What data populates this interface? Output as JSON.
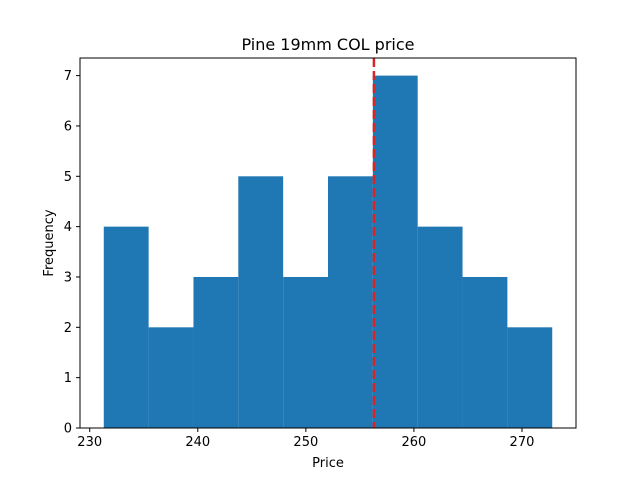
{
  "chart_data": {
    "type": "histogram",
    "title": "Pine 19mm COL price",
    "xlabel": "Price",
    "ylabel": "Frequency",
    "xlim": [
      229.1,
      275.0
    ],
    "ylim": [
      0,
      7.35
    ],
    "xticks": [
      230,
      240,
      250,
      260,
      270
    ],
    "yticks": [
      0,
      1,
      2,
      3,
      4,
      5,
      6,
      7
    ],
    "bins": [
      {
        "start": 231.3,
        "end": 235.45,
        "count": 4
      },
      {
        "start": 235.45,
        "end": 239.6,
        "count": 2
      },
      {
        "start": 239.6,
        "end": 243.75,
        "count": 3
      },
      {
        "start": 243.75,
        "end": 247.9,
        "count": 5
      },
      {
        "start": 247.9,
        "end": 252.05,
        "count": 3
      },
      {
        "start": 252.05,
        "end": 256.2,
        "count": 5
      },
      {
        "start": 256.2,
        "end": 260.35,
        "count": 7
      },
      {
        "start": 260.35,
        "end": 264.5,
        "count": 4
      },
      {
        "start": 264.5,
        "end": 268.65,
        "count": 3
      },
      {
        "start": 268.65,
        "end": 272.8,
        "count": 2
      }
    ],
    "reference_line": {
      "value": 256.3,
      "style": "dashed",
      "color": "#d62728"
    },
    "bar_color": "#1f77b4",
    "grid": false
  }
}
